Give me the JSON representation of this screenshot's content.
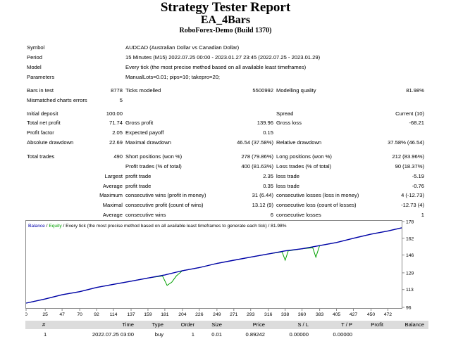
{
  "header": {
    "title": "Strategy Tester Report",
    "ea_name": "EA_4Bars",
    "server": "RoboForex-Demo (Build 1370)"
  },
  "info": [
    {
      "label": "Symbol",
      "value": "AUDCAD (Australian Dollar vs Canadian Dollar)"
    },
    {
      "label": "Period",
      "value": "15 Minutes (M15) 2022.07.25 00:00 - 2023.01.27 23:45 (2022.07.25 - 2023.01.29)"
    },
    {
      "label": "Model",
      "value": "Every tick (the most precise method based on all available least timeframes)"
    },
    {
      "label": "Parameters",
      "value": "ManualLots=0.01; pips=10; takepro=20;"
    }
  ],
  "stats": {
    "bars_in_test": {
      "label": "Bars in test",
      "value": "8778"
    },
    "ticks_modelled": {
      "label": "Ticks modelled",
      "value": "5500992"
    },
    "modelling_quality": {
      "label": "Modelling quality",
      "value": "81.98%"
    },
    "mismatched": {
      "label": "Mismatched charts errors",
      "value": "5"
    },
    "initial_deposit": {
      "label": "Initial deposit",
      "value": "100.00"
    },
    "spread": {
      "label": "Spread",
      "value": "Current (10)"
    },
    "total_net_profit": {
      "label": "Total net profit",
      "value": "71.74"
    },
    "gross_profit": {
      "label": "Gross profit",
      "value": "139.96"
    },
    "gross_loss": {
      "label": "Gross loss",
      "value": "-68.21"
    },
    "profit_factor": {
      "label": "Profit factor",
      "value": "2.05"
    },
    "expected_payoff": {
      "label": "Expected payoff",
      "value": "0.15"
    },
    "absolute_drawdown": {
      "label": "Absolute drawdown",
      "value": "22.69"
    },
    "maximal_drawdown": {
      "label": "Maximal drawdown",
      "value": "46.54 (37.58%)"
    },
    "relative_drawdown": {
      "label": "Relative drawdown",
      "value": "37.58% (46.54)"
    },
    "total_trades": {
      "label": "Total trades",
      "value": "490"
    },
    "short_positions": {
      "label": "Short positions (won %)",
      "value": "278 (79.86%)"
    },
    "long_positions": {
      "label": "Long positions (won %)",
      "value": "212 (83.96%)"
    },
    "profit_trades": {
      "label": "Profit trades (% of total)",
      "value": "400 (81.63%)"
    },
    "loss_trades": {
      "label": "Loss trades (% of total)",
      "value": "90 (18.37%)"
    },
    "largest_prefix": "Largest",
    "average_prefix": "Average",
    "maximum_prefix": "Maximum",
    "maximal_prefix": "Maximal",
    "largest_profit": {
      "label": "profit trade",
      "value": "2.35"
    },
    "largest_loss": {
      "label": "loss trade",
      "value": "-5.19"
    },
    "average_profit": {
      "label": "profit trade",
      "value": "0.35"
    },
    "average_loss": {
      "label": "loss trade",
      "value": "-0.76"
    },
    "max_cons_wins": {
      "label": "consecutive wins (profit in money)",
      "value": "31 (6.44)"
    },
    "max_cons_losses": {
      "label": "consecutive losses (loss in money)",
      "value": "4 (-12.73)"
    },
    "maximal_cons_profit": {
      "label": "consecutive profit (count of wins)",
      "value": "13.12 (9)"
    },
    "maximal_cons_loss": {
      "label": "consecutive loss (count of losses)",
      "value": "-12.73 (4)"
    },
    "avg_cons_wins": {
      "label": "consecutive wins",
      "value": "6"
    },
    "avg_cons_losses": {
      "label": "consecutive losses",
      "value": "1"
    }
  },
  "chart_legend": {
    "balance": "Balance",
    "sep1": " / ",
    "equity": "Equity",
    "rest": " / Every tick (the most precise method based on all available least timeframes to generate each tick) / 81.98%"
  },
  "colors": {
    "balance": "#0000aa",
    "equity": "#00a000",
    "chart_border": "#8a8a8a",
    "table_header_bg": "#dcdcdc"
  },
  "chart_data": {
    "type": "line",
    "x_ticks": [
      "0",
      "25",
      "47",
      "70",
      "92",
      "114",
      "137",
      "159",
      "181",
      "204",
      "226",
      "249",
      "271",
      "293",
      "316",
      "338",
      "360",
      "383",
      "405",
      "427",
      "450",
      "472"
    ],
    "y_ticks": [
      "178",
      "162",
      "146",
      "129",
      "113",
      "96"
    ],
    "ylim": [
      96,
      178
    ],
    "xlim": [
      0,
      490
    ],
    "series": [
      {
        "name": "Balance",
        "color": "#0000aa",
        "x": [
          0,
          25,
          47,
          70,
          92,
          114,
          137,
          159,
          181,
          204,
          226,
          249,
          271,
          293,
          316,
          338,
          360,
          383,
          405,
          427,
          450,
          472,
          490
        ],
        "y": [
          100,
          104,
          108,
          111,
          115,
          118,
          121,
          124,
          127,
          131,
          134,
          138,
          141,
          144,
          147,
          150,
          152,
          155,
          158,
          162,
          166,
          169,
          172
        ]
      },
      {
        "name": "Equity",
        "color": "#00a000",
        "x": [
          0,
          25,
          47,
          70,
          92,
          114,
          137,
          159,
          178,
          184,
          190,
          196,
          204,
          226,
          249,
          271,
          293,
          316,
          334,
          338,
          342,
          360,
          374,
          378,
          383,
          405,
          427,
          450,
          472,
          490
        ],
        "y": [
          100,
          104,
          108,
          111,
          115,
          118,
          121,
          124,
          126,
          117,
          120,
          126,
          131,
          134,
          138,
          141,
          144,
          147,
          149,
          141,
          150,
          152,
          153,
          144,
          155,
          158,
          162,
          166,
          169,
          172
        ]
      }
    ]
  },
  "trade_table": {
    "headers": [
      "#",
      "Time",
      "Type",
      "Order",
      "Size",
      "Price",
      "S / L",
      "T / P",
      "Profit",
      "Balance"
    ],
    "rows": [
      [
        "1",
        "2022.07.25 03:00",
        "buy",
        "1",
        "0.01",
        "0.89242",
        "0.00000",
        "0.00000",
        "",
        ""
      ]
    ]
  }
}
